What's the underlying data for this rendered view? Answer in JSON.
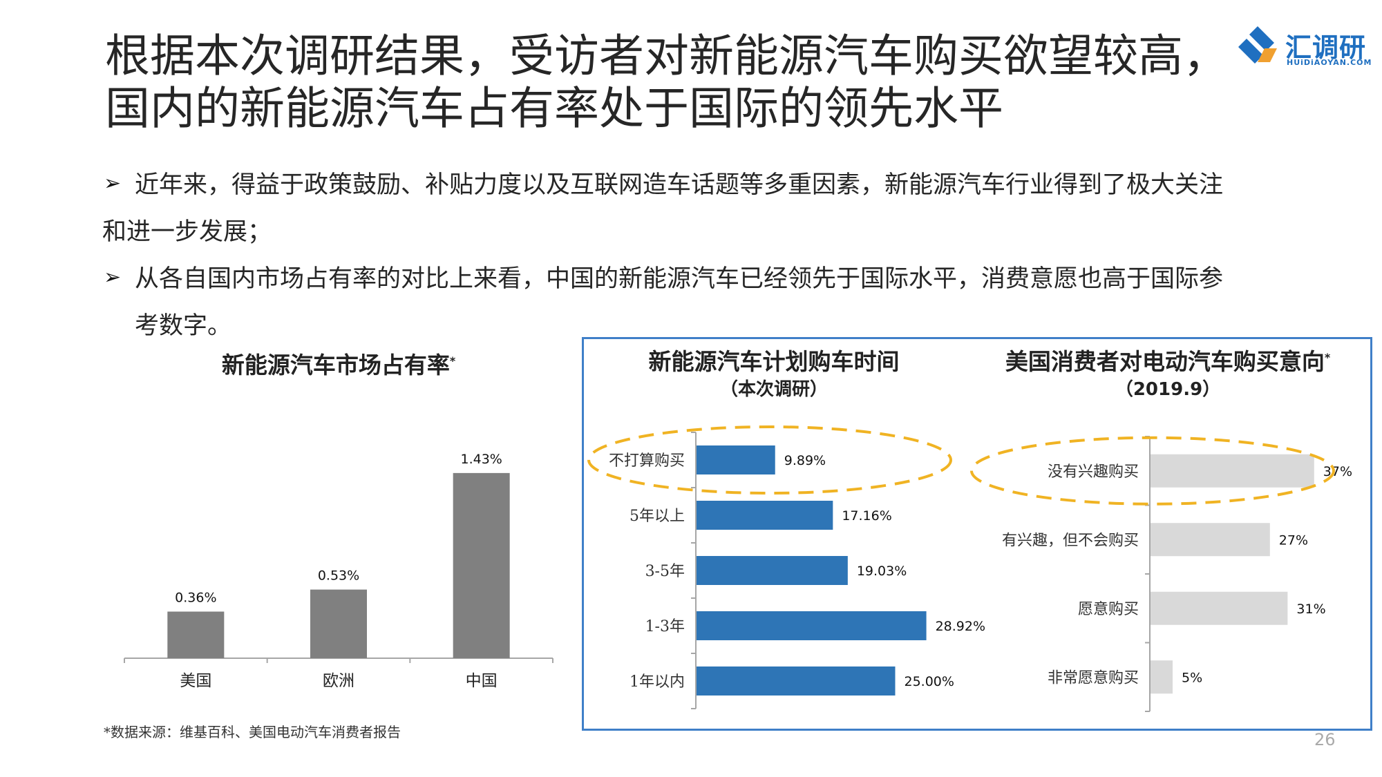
{
  "title": {
    "line1": "根据本次调研结果，受访者对新能源汽车购买欲望较高，",
    "line2": "国内的新能源汽车占有率处于国际的领先水平"
  },
  "logo": {
    "name": "汇调研",
    "sub": "HUiDiAOYAN.COM",
    "icon": "huidiaoyan-logo-icon"
  },
  "bullets": {
    "b1_line1": "近年来，得益于政策鼓励、补贴力度以及互联网造车话题等多重因素，新能源汽车行业得到了极大关注",
    "b1_line2": "和进一步发展；",
    "b2_line1": "从各自国内市场占有率的对比上来看，中国的新能源汽车已经领先于国际水平，消费意愿也高于国际参",
    "b2_line2": "考数字。",
    "mark": "➢"
  },
  "source": "*数据来源：维基百科、美国电动汽车消费者报告",
  "page_number": "26",
  "colors": {
    "gray_bar": "#808080",
    "blue_bar": "#2e75b6",
    "light_gray_bar": "#d9d9d9",
    "highlight": "#f0b323",
    "box_border": "#3f7fc8"
  },
  "chart_data": [
    {
      "type": "bar",
      "title": "新能源汽车市场占有率",
      "title_mark": "*",
      "categories": [
        "美国",
        "欧洲",
        "中国"
      ],
      "values": [
        0.36,
        0.53,
        1.43
      ],
      "labels": [
        "0.36%",
        "0.53%",
        "1.43%"
      ],
      "ylim": [
        0,
        1.6
      ]
    },
    {
      "type": "bar",
      "orientation": "horizontal",
      "title": "新能源汽车计划购车时间",
      "subtitle": "（本次调研）",
      "categories": [
        "不打算购买",
        "5年以上",
        "3-5年",
        "1-3年",
        "1年以内"
      ],
      "values": [
        9.89,
        17.16,
        19.03,
        28.92,
        25.0
      ],
      "labels": [
        "9.89%",
        "17.16%",
        "19.03%",
        "28.92%",
        "25.00%"
      ],
      "xlim": [
        0,
        30
      ],
      "highlight": "不打算购买"
    },
    {
      "type": "bar",
      "orientation": "horizontal",
      "title": "美国消费者对电动汽车购买意向",
      "title_mark": "*",
      "subtitle": "（2019.9）",
      "categories": [
        "没有兴趣购买",
        "有兴趣，但不会购买",
        "愿意购买",
        "非常愿意购买"
      ],
      "values": [
        37,
        27,
        31,
        5
      ],
      "labels": [
        "37%",
        "27%",
        "31%",
        "5%"
      ],
      "xlim": [
        0,
        40
      ],
      "highlight": "没有兴趣购买"
    }
  ]
}
